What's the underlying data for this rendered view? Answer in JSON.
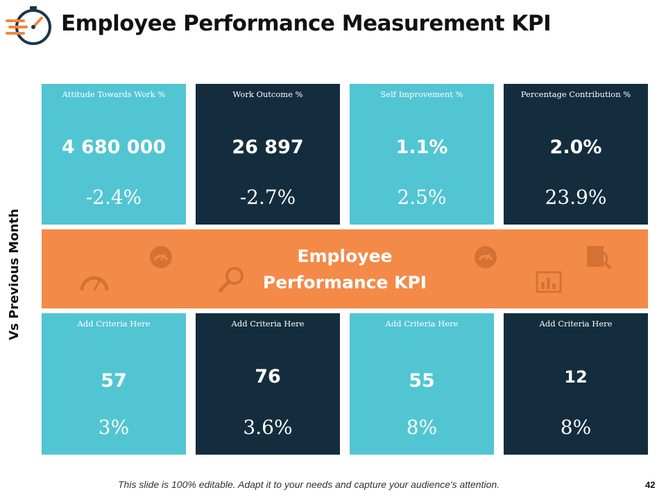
{
  "header": {
    "title": "Employee Performance Measurement KPI"
  },
  "side_label": "Vs Previous Month",
  "colors": {
    "cyan": "#52c5d3",
    "navy": "#142d3e",
    "orange": "#f48a48"
  },
  "top_cards": [
    {
      "label": "Attitude Towards Work %",
      "value": "4 680 000",
      "change": "-2.4%"
    },
    {
      "label": "Work Outcome %",
      "value": "26 897",
      "change": "-2.7%"
    },
    {
      "label": "Self Improvement %",
      "value": "1.1%",
      "change": "2.5%"
    },
    {
      "label": "Percentage Contribution %",
      "value": "2.0%",
      "change": "23.9%"
    }
  ],
  "band": {
    "line1": "Employee",
    "line2": "Performance KPI"
  },
  "band_icons": [
    "gauge-icon",
    "speedometer-icon",
    "magnifier-icon",
    "gauge-icon",
    "bar-chart-icon",
    "document-search-icon"
  ],
  "bottom_cards": [
    {
      "label": "Add Criteria Here",
      "value": "57",
      "change": "3%"
    },
    {
      "label": "Add Criteria Here",
      "value": "76",
      "change": "3.6%"
    },
    {
      "label": "Add Criteria Here",
      "value": "55",
      "change": "8%"
    },
    {
      "label": "Add Criteria Here",
      "value": "12",
      "change": "8%"
    }
  ],
  "footer": {
    "note": "This slide is 100% editable. Adapt it to your needs and capture your audience's attention.",
    "page_number": "42"
  }
}
